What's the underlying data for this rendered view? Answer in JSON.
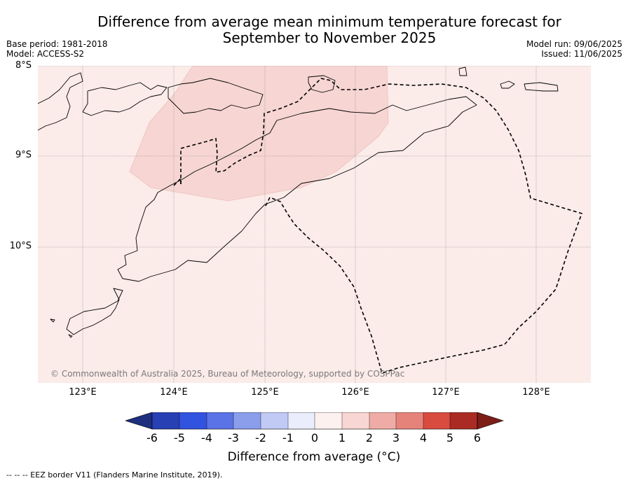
{
  "title_line1": "Difference from average mean minimum temperature forecast for",
  "title_line2": "September to November 2025",
  "base_period": "Base period: 1981-2018",
  "model": "Model: ACCESS-S2",
  "model_run": "Model run: 09/06/2025",
  "issued": "Issued: 11/06/2025",
  "lat_labels": [
    "8°S",
    "9°S",
    "10°S"
  ],
  "lon_labels": [
    "123°E",
    "124°E",
    "125°E",
    "126°E",
    "127°E",
    "128°E"
  ],
  "copyright": "© Commonwealth of Australia 2025, Bureau of Meteorology, supported by COSPPac",
  "colorbar": {
    "ticks": [
      "-6",
      "-5",
      "-4",
      "-3",
      "-2",
      "-1",
      "0",
      "1",
      "2",
      "3",
      "4",
      "5",
      "6"
    ],
    "colors": [
      "#1d2f7e",
      "#2740b3",
      "#3252e0",
      "#5a73e6",
      "#8a9eec",
      "#c0caf5",
      "#eaedfc",
      "#fdf1f0",
      "#f8d6d3",
      "#efaca6",
      "#e5837a",
      "#d94b3f",
      "#aa2b23",
      "#7d1d18"
    ],
    "label": "Difference from average (°C)"
  },
  "footer": "--  --  -- EEZ border V11 (Flanders Marine Institute, 2019)."
}
